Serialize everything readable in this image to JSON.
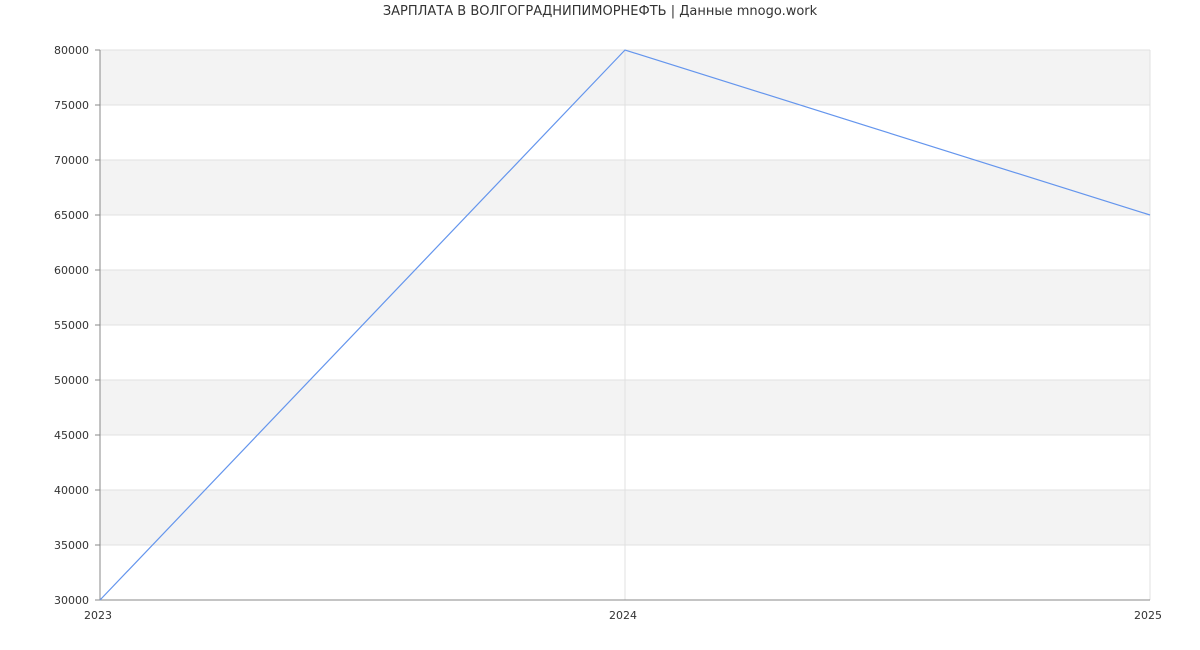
{
  "title": "ЗАРПЛАТА В ВОЛГОГРАДНИПИМОРНЕФТЬ | Данные mnogo.work",
  "chart_data": {
    "type": "line",
    "title": "ЗАРПЛАТА В ВОЛГОГРАДНИПИМОРНЕФТЬ | Данные mnogo.work",
    "x": [
      "2023",
      "2024",
      "2025"
    ],
    "series": [
      {
        "values": [
          30000,
          80000,
          65000
        ],
        "color": "#6495ED"
      }
    ],
    "xlabel": "",
    "ylabel": "",
    "ylim": [
      30000,
      80000
    ],
    "yticks": [
      "30000",
      "35000",
      "40000",
      "45000",
      "50000",
      "55000",
      "60000",
      "65000",
      "70000",
      "75000",
      "80000"
    ],
    "xticks": [
      "2023",
      "2024",
      "2025"
    ],
    "grid": true,
    "band_color": "#f3f3f3",
    "grid_color": "#e0e0e0",
    "axis_color": "#888888"
  }
}
